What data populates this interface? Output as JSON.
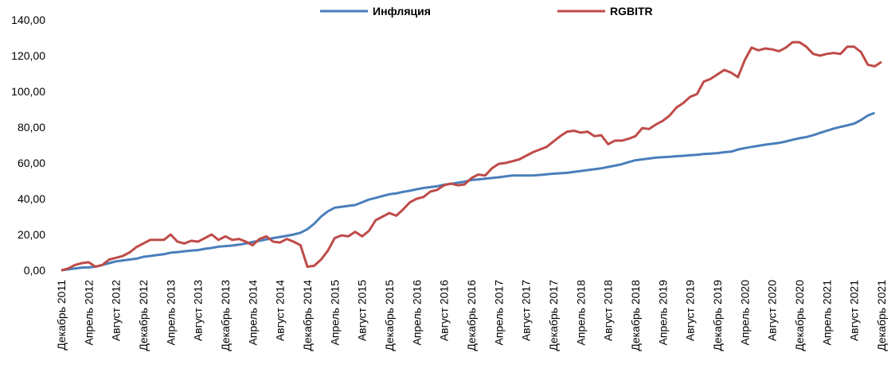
{
  "chart_data": {
    "type": "line",
    "categories": [
      "Декабрь 2011",
      null,
      null,
      null,
      "Апрель 2012",
      null,
      null,
      null,
      "Август 2012",
      null,
      null,
      null,
      "Декабрь 2012",
      null,
      null,
      null,
      "Апрель 2013",
      null,
      null,
      null,
      "Август 2013",
      null,
      null,
      null,
      "Декабрь 2013",
      null,
      null,
      null,
      "Апрель 2014",
      null,
      null,
      null,
      "Август 2014",
      null,
      null,
      null,
      "Декабрь 2014",
      null,
      null,
      null,
      "Апрель 2015",
      null,
      null,
      null,
      "Август 2015",
      null,
      null,
      null,
      "Декабрь 2015",
      null,
      null,
      null,
      "Апрель 2016",
      null,
      null,
      null,
      "Август 2016",
      null,
      null,
      null,
      "Декабрь 2016",
      null,
      null,
      null,
      "Апрель 2017",
      null,
      null,
      null,
      "Август 2017",
      null,
      null,
      null,
      "Декабрь 2017",
      null,
      null,
      null,
      "Апрель 2018",
      null,
      null,
      null,
      "Август 2018",
      null,
      null,
      null,
      "Декабрь 2018",
      null,
      null,
      null,
      "Апрель 2019",
      null,
      null,
      null,
      "Август 2019",
      null,
      null,
      null,
      "Декабрь 2019",
      null,
      null,
      null,
      "Апрель 2020",
      null,
      null,
      null,
      "Август 2020",
      null,
      null,
      null,
      "Декабрь 2020",
      null,
      null,
      null,
      "Апрель 2021",
      null,
      null,
      null,
      "Август 2021",
      null,
      null,
      null,
      "Декабрь 2021"
    ],
    "series": [
      {
        "name": "Инфляция",
        "color": "#4a7ebb",
        "values": [
          0,
          0.5,
          1,
          1.5,
          1.6,
          2,
          3,
          4,
          5,
          5.5,
          6,
          6.5,
          7.5,
          8,
          8.5,
          9,
          9.8,
          10.2,
          10.6,
          11,
          11.3,
          12,
          12.5,
          13.2,
          13.5,
          13.8,
          14.3,
          15,
          15.8,
          16.5,
          17.3,
          18,
          18.6,
          19.3,
          20,
          21,
          23,
          26,
          30,
          33,
          35,
          35.5,
          36,
          36.5,
          38,
          39.5,
          40.5,
          41.5,
          42.5,
          43,
          43.8,
          44.5,
          45.3,
          46,
          46.5,
          47,
          47.8,
          48.3,
          49,
          49.5,
          50.5,
          50.8,
          51.2,
          51.6,
          52,
          52.5,
          53,
          53,
          53,
          53,
          53.3,
          53.7,
          54,
          54.2,
          54.5,
          55,
          55.5,
          56,
          56.5,
          57,
          57.8,
          58.5,
          59.3,
          60.5,
          61.5,
          62,
          62.5,
          63,
          63.2,
          63.4,
          63.8,
          64,
          64.3,
          64.6,
          65,
          65.2,
          65.5,
          66,
          66.3,
          67.5,
          68.3,
          69,
          69.6,
          70.2,
          70.7,
          71.2,
          72,
          73,
          73.8,
          74.5,
          75.5,
          76.8,
          78,
          79.2,
          80.2,
          81,
          82,
          84,
          86.5,
          88,
          null
        ]
      },
      {
        "name": "RGBITR",
        "color": "#be4b48",
        "values": [
          0,
          1,
          3,
          4,
          4.5,
          2,
          3,
          6,
          7,
          8,
          10,
          13,
          15,
          17,
          17,
          17,
          20,
          16,
          15,
          16.5,
          16,
          18,
          20,
          17,
          19,
          17,
          17.5,
          16,
          14,
          17.5,
          19,
          16,
          15.5,
          17.5,
          16,
          14,
          2,
          2.5,
          6,
          11,
          18,
          19.5,
          19,
          21.5,
          19,
          22,
          28,
          30,
          32,
          30.5,
          34,
          38,
          40,
          41,
          44,
          45,
          47.5,
          48.5,
          47.5,
          48,
          51.5,
          53.5,
          53,
          57,
          59.5,
          60,
          61,
          62,
          64,
          66,
          67.5,
          69,
          72,
          75,
          77.5,
          78,
          77,
          77.5,
          75,
          75.5,
          70.5,
          72.5,
          72.5,
          73.5,
          75,
          79.5,
          79,
          81.5,
          83.5,
          86.5,
          91,
          93.5,
          97,
          98.5,
          105.5,
          107,
          109.5,
          112,
          110.5,
          108,
          117.5,
          124.5,
          123,
          124,
          123.5,
          122.5,
          124.5,
          127.5,
          127.5,
          125,
          121,
          120,
          121,
          121.5,
          121,
          125,
          125,
          122,
          115,
          114,
          116.5
        ]
      }
    ],
    "ylim": [
      0,
      140
    ],
    "yticks": [
      {
        "value": 0,
        "label": "0,00"
      },
      {
        "value": 20,
        "label": "20,00"
      },
      {
        "value": 40,
        "label": "40,00"
      },
      {
        "value": 60,
        "label": "60,00"
      },
      {
        "value": 80,
        "label": "80,00"
      },
      {
        "value": 100,
        "label": "100,00"
      },
      {
        "value": 120,
        "label": "120,00"
      },
      {
        "value": 140,
        "label": "140,00"
      }
    ],
    "grid": false,
    "legend": "top"
  }
}
